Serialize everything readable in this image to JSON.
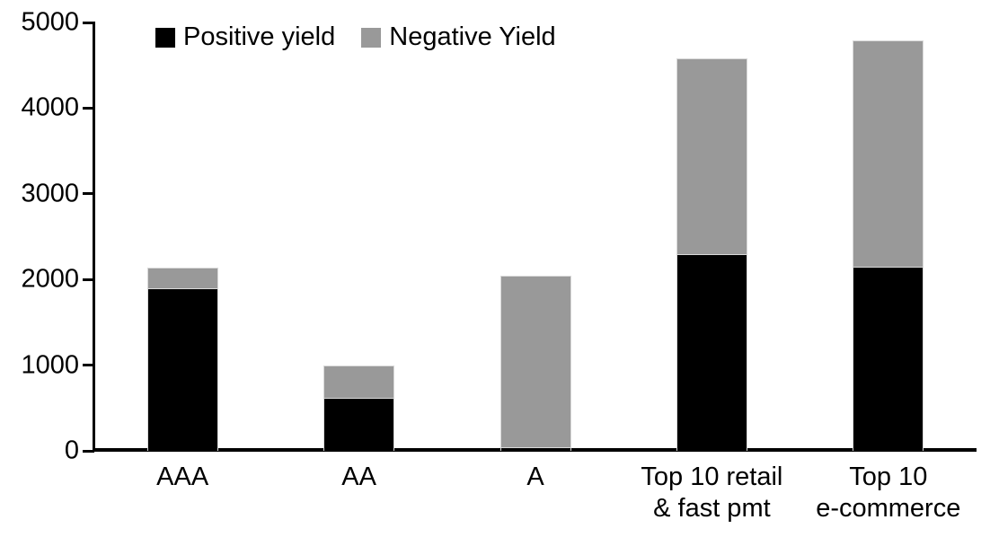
{
  "chart_data": {
    "type": "bar",
    "stacked": true,
    "title": "",
    "xlabel": "",
    "ylabel": "",
    "categories": [
      "AAA",
      "AA",
      "A",
      "Top 10 retail & fast pmt",
      "Top 10 e-commerce"
    ],
    "category_label_lines": [
      [
        "AAA"
      ],
      [
        "AA"
      ],
      [
        "A"
      ],
      [
        "Top 10 retail",
        "& fast pmt"
      ],
      [
        "Top 10",
        "e-commerce"
      ]
    ],
    "series": [
      {
        "name": "Positive yield",
        "color": "#000000",
        "values": [
          1900,
          620,
          40,
          2300,
          2150
        ]
      },
      {
        "name": "Negative Yield",
        "color": "#999999",
        "values": [
          240,
          380,
          2000,
          2280,
          2640
        ]
      }
    ],
    "totals": [
      2140,
      1000,
      2040,
      4580,
      4790
    ],
    "ylim": [
      0,
      5000
    ],
    "yticks": [
      0,
      1000,
      2000,
      3000,
      4000,
      5000
    ],
    "grid": false,
    "legend_position": "top-inside-left"
  },
  "colors": {
    "positive_series": "#000000",
    "negative_series": "#999999",
    "axis": "#000000",
    "background": "#ffffff"
  }
}
